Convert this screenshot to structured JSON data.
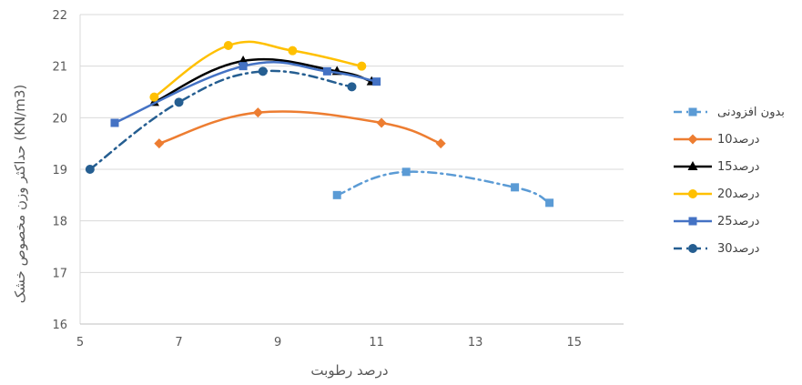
{
  "chart_data": {
    "type": "line",
    "xlabel": "درصد رطوبت",
    "ylabel": "حداکثر وزن مخصوص خشک (KN/m3)",
    "xlim": [
      5,
      16
    ],
    "ylim": [
      16,
      22
    ],
    "x_ticks": [
      "5",
      "7",
      "9",
      "11",
      "13",
      "15"
    ],
    "y_ticks": [
      "16",
      "17",
      "18",
      "19",
      "20",
      "21",
      "22"
    ],
    "grid": "horizontal",
    "legend_position": "right",
    "series": [
      {
        "name": "بدون افزودنی",
        "color": "#5b9bd5",
        "marker": "square",
        "dash": "dashdot",
        "points": [
          [
            10.2,
            18.5
          ],
          [
            11.6,
            18.95
          ],
          [
            13.8,
            18.65
          ],
          [
            14.5,
            18.35
          ]
        ]
      },
      {
        "name": "10درصد",
        "color": "#ed7d31",
        "marker": "diamond",
        "dash": "solid",
        "points": [
          [
            6.6,
            19.5
          ],
          [
            8.6,
            20.1
          ],
          [
            11.1,
            19.9
          ],
          [
            12.3,
            19.5
          ]
        ]
      },
      {
        "name": "15درصد",
        "color": "#000000",
        "marker": "triangle",
        "dash": "solid",
        "points": [
          [
            6.5,
            20.3
          ],
          [
            8.3,
            21.1
          ],
          [
            10.2,
            20.9
          ],
          [
            10.9,
            20.7
          ]
        ]
      },
      {
        "name": "20درصد",
        "color": "#ffc000",
        "marker": "circle",
        "dash": "solid",
        "points": [
          [
            6.5,
            20.4
          ],
          [
            8.0,
            21.4
          ],
          [
            9.3,
            21.3
          ],
          [
            10.7,
            21.0
          ]
        ]
      },
      {
        "name": "25درصد",
        "color": "#4472c4",
        "marker": "square",
        "dash": "solid",
        "points": [
          [
            5.7,
            19.9
          ],
          [
            8.3,
            21.0
          ],
          [
            10.0,
            20.9
          ],
          [
            11.0,
            20.7
          ]
        ]
      },
      {
        "name": "30درصد",
        "color": "#255e91",
        "marker": "circle",
        "dash": "dashdot",
        "points": [
          [
            5.2,
            19.0
          ],
          [
            7.0,
            20.3
          ],
          [
            8.7,
            20.9
          ],
          [
            10.5,
            20.6
          ]
        ]
      }
    ]
  }
}
